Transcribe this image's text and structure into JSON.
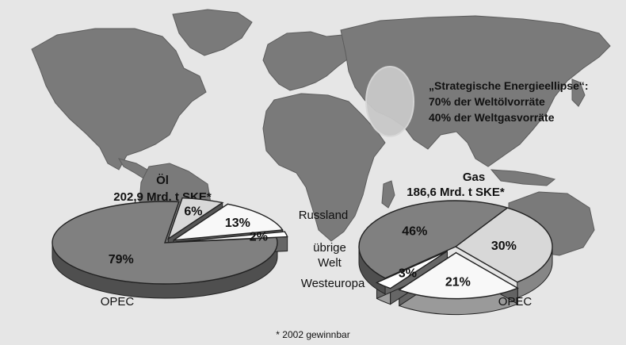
{
  "ellipse_note": {
    "line1": "„Strategische Energieellipse“:",
    "line2": "70% der Weltölvorräte",
    "line3": "40% der Weltgasvorräte"
  },
  "footnote": "* 2002 gewinnbar",
  "legend_labels": {
    "russland": "Russland",
    "uebrige_welt_1": "übrige",
    "uebrige_welt_2": "Welt",
    "westeuropa": "Westeuropa"
  },
  "colors": {
    "background": "#e6e6e6",
    "map_land": "#7a7a7a",
    "ellipse": "#c8c8c8",
    "opec": "#808080",
    "russland": "#d8d8d8",
    "uebrige_welt": "#f8f8f8",
    "westeuropa": "#ffffff"
  },
  "chart_data": [
    {
      "type": "pie",
      "title": "Öl",
      "subtitle": "202,9 Mrd. t SKE*",
      "categories": [
        "OPEC",
        "Russland",
        "übrige Welt",
        "Westeuropa"
      ],
      "values": [
        79,
        6,
        13,
        2
      ],
      "value_labels": [
        "79%",
        "6%",
        "13%",
        "2%"
      ],
      "exploded": [
        false,
        true,
        true,
        true
      ],
      "category_label_shown": "OPEC"
    },
    {
      "type": "pie",
      "title": "Gas",
      "subtitle": "186,6 Mrd. t SKE*",
      "categories": [
        "Russland",
        "übrige Welt",
        "Westeuropa",
        "OPEC"
      ],
      "values": [
        30,
        21,
        3,
        46
      ],
      "value_labels": [
        "30%",
        "21%",
        "3%",
        "46%"
      ],
      "exploded": [
        false,
        true,
        true,
        false
      ],
      "category_label_shown": "OPEC"
    }
  ]
}
